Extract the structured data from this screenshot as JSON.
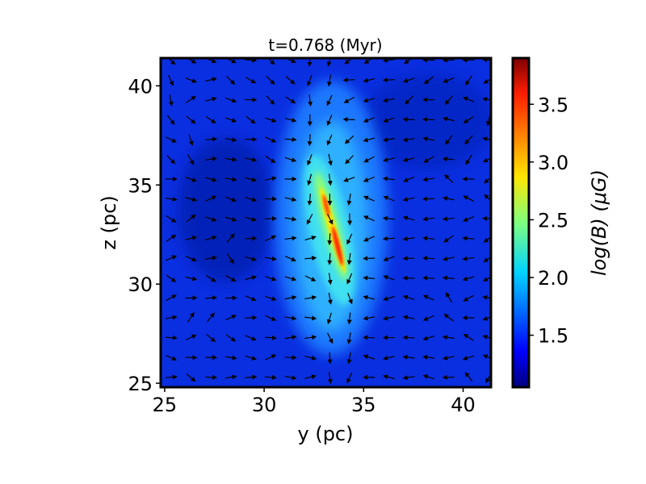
{
  "chart_data": {
    "type": "heatmap",
    "title": "t=0.768 (Myr)",
    "xlabel": "y (pc)",
    "ylabel": "z (pc)",
    "xlim": [
      24.8,
      41.4
    ],
    "ylim": [
      24.8,
      41.4
    ],
    "x_ticks": [
      25,
      30,
      35,
      40
    ],
    "y_ticks": [
      25,
      30,
      35,
      40
    ],
    "x_tick_labels": [
      "25",
      "30",
      "35",
      "40"
    ],
    "y_tick_labels": [
      "25",
      "30",
      "35",
      "40"
    ],
    "colormap": "jet",
    "colorbar": {
      "label": "log(B) (μG)",
      "range": [
        1.05,
        3.9
      ],
      "ticks": [
        1.5,
        2.0,
        2.5,
        3.0,
        3.5
      ],
      "tick_labels": [
        "1.5",
        "2.0",
        "2.5",
        "3.0",
        "3.5"
      ]
    },
    "field_description": "magnetic field strength map with an elongated dense filament near y≈33–34 pc; overlaid black arrows show field direction",
    "filament_ridge": [
      {
        "y": 32.6,
        "z": 38.0
      },
      {
        "y": 32.9,
        "z": 35.5
      },
      {
        "y": 33.2,
        "z": 34.0
      },
      {
        "y": 33.5,
        "z": 33.0
      },
      {
        "y": 33.8,
        "z": 31.5
      },
      {
        "y": 34.0,
        "z": 30.5
      },
      {
        "y": 34.0,
        "z": 29.0
      }
    ],
    "grid": false,
    "legend": "none",
    "vectors": true
  }
}
